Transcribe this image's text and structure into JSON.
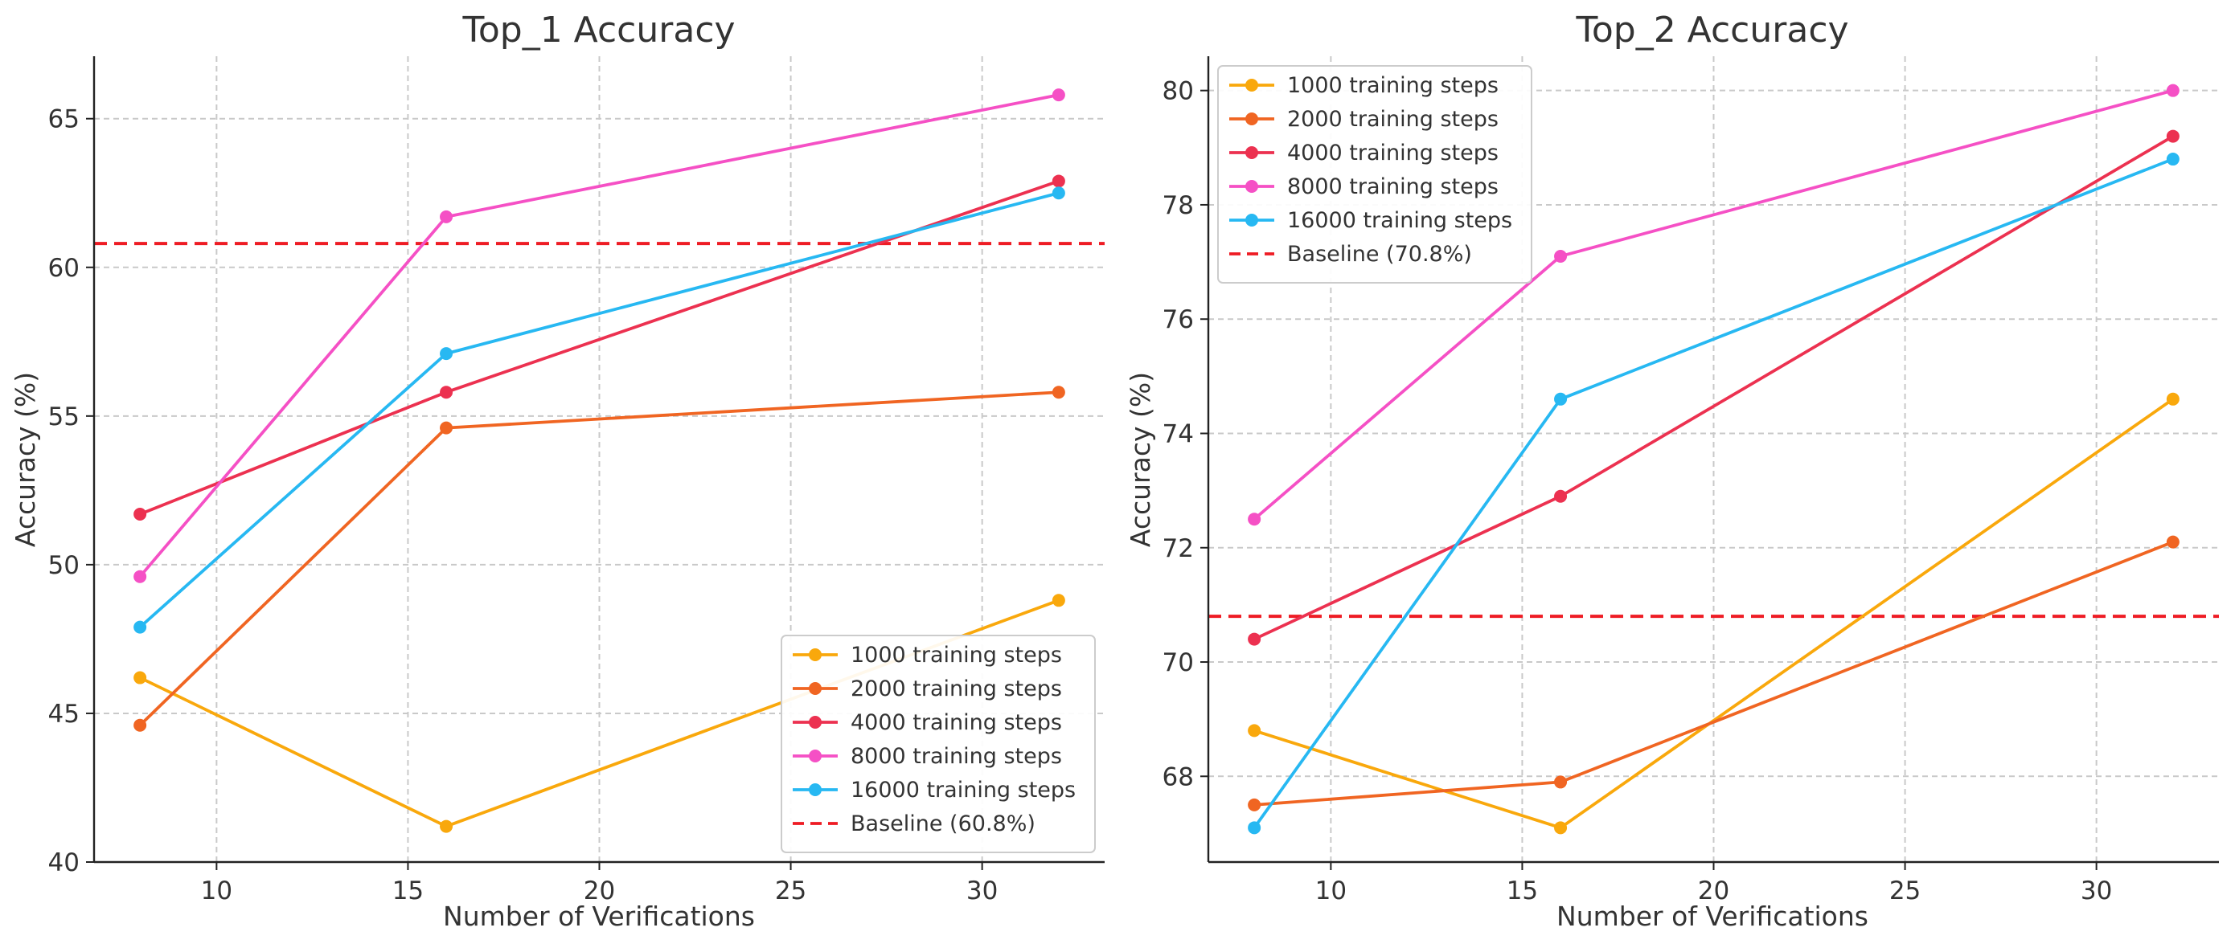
{
  "chart_data": [
    {
      "type": "line",
      "title": "Top_1 Accuracy",
      "xlabel": "Number of Verifications",
      "ylabel": "Accuracy (%)",
      "x": [
        8,
        16,
        32
      ],
      "xlim": [
        6.8,
        33.2
      ],
      "ylim": [
        40,
        67.1
      ],
      "xticks": [
        10,
        15,
        20,
        25,
        30
      ],
      "yticks": [
        40,
        45,
        50,
        55,
        60,
        65
      ],
      "grid": true,
      "legend_position": "lower right",
      "series": [
        {
          "name": "1000 training steps",
          "color": "#f9a80c",
          "values": [
            46.2,
            41.2,
            48.8
          ]
        },
        {
          "name": "2000 training steps",
          "color": "#f06522",
          "values": [
            44.6,
            54.6,
            55.8
          ]
        },
        {
          "name": "4000 training steps",
          "color": "#ec3150",
          "values": [
            51.7,
            55.8,
            62.9
          ]
        },
        {
          "name": "8000 training steps",
          "color": "#f550c5",
          "values": [
            49.6,
            61.7,
            65.8
          ]
        },
        {
          "name": "16000 training steps",
          "color": "#27b8f2",
          "values": [
            47.9,
            57.1,
            62.5
          ]
        }
      ],
      "baseline": {
        "name": "Baseline (60.8%)",
        "value": 60.8,
        "color": "#ee1c24",
        "style": "dashed"
      }
    },
    {
      "type": "line",
      "title": "Top_2 Accuracy",
      "xlabel": "Number of Verifications",
      "ylabel": "Accuracy (%)",
      "x": [
        8,
        16,
        32
      ],
      "xlim": [
        6.8,
        33.2
      ],
      "ylim": [
        66.5,
        80.6
      ],
      "xticks": [
        10,
        15,
        20,
        25,
        30
      ],
      "yticks": [
        68,
        70,
        72,
        74,
        76,
        78,
        80
      ],
      "grid": true,
      "legend_position": "upper left",
      "series": [
        {
          "name": "1000 training steps",
          "color": "#f9a80c",
          "values": [
            68.8,
            67.1,
            74.6
          ]
        },
        {
          "name": "2000 training steps",
          "color": "#f06522",
          "values": [
            67.5,
            67.9,
            72.1
          ]
        },
        {
          "name": "4000 training steps",
          "color": "#ec3150",
          "values": [
            70.4,
            72.9,
            79.2
          ]
        },
        {
          "name": "8000 training steps",
          "color": "#f550c5",
          "values": [
            72.5,
            77.1,
            80.0
          ]
        },
        {
          "name": "16000 training steps",
          "color": "#27b8f2",
          "values": [
            67.1,
            74.6,
            78.8
          ]
        }
      ],
      "baseline": {
        "name": "Baseline (70.8%)",
        "value": 70.8,
        "color": "#ee1c24",
        "style": "dashed"
      }
    }
  ]
}
